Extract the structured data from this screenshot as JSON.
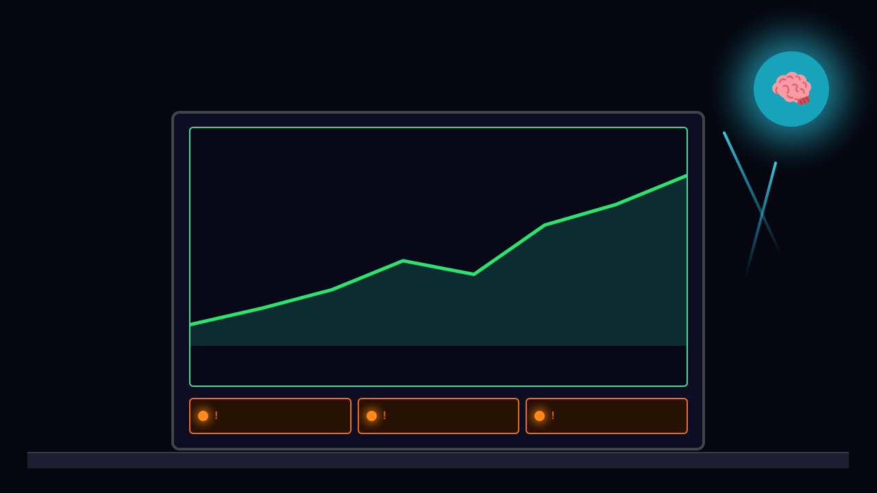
{
  "scene": {
    "background_color": "#05060f",
    "desk": {
      "color": "#1e1e30",
      "edge_color": "#3c3c46"
    },
    "monitor": {
      "frame_color": "#0c0c22",
      "frame_border_color": "#43434b"
    },
    "chart_panel": {
      "border_color": "#3eda98",
      "background_color": "#080818"
    },
    "alerts": {
      "items": [
        {
          "icon": "alert-dot-icon",
          "label": "!"
        },
        {
          "icon": "alert-dot-icon",
          "label": "!"
        },
        {
          "icon": "alert-dot-icon",
          "label": "!"
        }
      ],
      "border_color": "#ed6d12",
      "background_color": "#271103",
      "dot_color": "#ff8a1c",
      "label_color": "#d85e0e"
    },
    "orb": {
      "icon": "brain-icon",
      "circle_color": "#17a3ba",
      "glow_color": "#2fc9e2"
    },
    "beams": {
      "color": "#39cde9"
    }
  },
  "chart_data": {
    "type": "area",
    "x": [
      1,
      2,
      3,
      4,
      5,
      6,
      7,
      8
    ],
    "values": [
      12.5,
      22,
      33,
      50,
      42,
      71,
      83,
      100
    ],
    "ylim": [
      0,
      128
    ],
    "title": "",
    "xlabel": "",
    "ylabel": "",
    "grid": false,
    "legend": false,
    "axes_visible": false,
    "line_color": "#2be46d",
    "fill_color": "#0d2c31",
    "line_width": 5
  }
}
